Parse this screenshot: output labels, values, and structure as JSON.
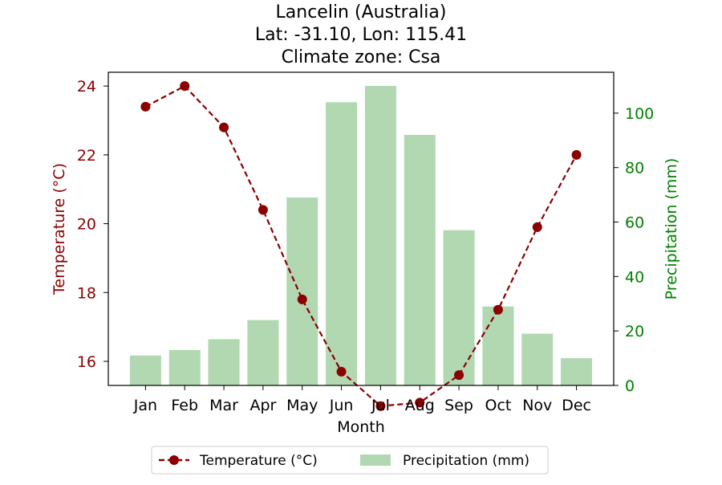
{
  "title_lines": [
    "Lancelin (Australia)",
    "Lat: -31.10, Lon: 115.41",
    "Climate zone: Csa"
  ],
  "colors": {
    "temperature": "#8b0000",
    "precipitation": "#008000",
    "bar_fill": "#b2d8b2",
    "axis": "#000000"
  },
  "chart_data": {
    "type": "bar",
    "combo": "bar+line",
    "title": "Lancelin (Australia)\nLat: -31.10, Lon: 115.41\nClimate zone: Csa",
    "categories": [
      "Jan",
      "Feb",
      "Mar",
      "Apr",
      "May",
      "Jun",
      "Jul",
      "Aug",
      "Sep",
      "Oct",
      "Nov",
      "Dec"
    ],
    "xlabel": "Month",
    "ylabel_left": "Temperature (°C)",
    "ylabel_right": "Precipitation (mm)",
    "ylim_left": [
      15.3,
      24.4
    ],
    "yticks_left": [
      16,
      18,
      20,
      22,
      24
    ],
    "ylim_right": [
      0,
      115
    ],
    "yticks_right": [
      0,
      20,
      40,
      60,
      80,
      100
    ],
    "series": [
      {
        "name": "Temperature (°C)",
        "type": "line",
        "axis": "left",
        "style": "dashed with circle markers",
        "values": [
          23.4,
          24.0,
          22.8,
          20.4,
          17.8,
          15.7,
          14.7,
          14.8,
          15.6,
          17.5,
          19.9,
          22.0
        ]
      },
      {
        "name": "Precipitation (mm)",
        "type": "bar",
        "axis": "right",
        "values": [
          11,
          13,
          17,
          24,
          69,
          104,
          110,
          92,
          57,
          29,
          19,
          10
        ]
      }
    ],
    "grid": false,
    "legend_position": "bottom-center"
  }
}
